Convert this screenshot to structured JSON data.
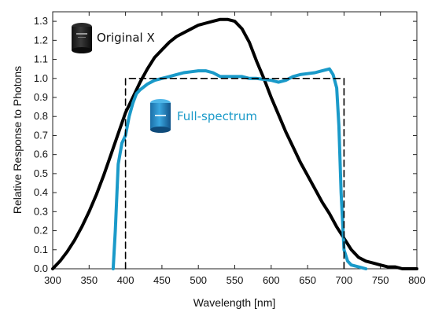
{
  "chart_data": {
    "type": "line",
    "title": "",
    "xlabel": "Wavelength [nm]",
    "ylabel": "Relative Response to Photons",
    "xlim": [
      300,
      800
    ],
    "ylim": [
      0,
      1.35
    ],
    "xticks": [
      300,
      350,
      400,
      450,
      500,
      550,
      600,
      650,
      700,
      750,
      800
    ],
    "xtick_labels": [
      "300",
      "350",
      "400",
      "450",
      "500",
      "550",
      "600",
      "650",
      "700",
      "750",
      "800"
    ],
    "yticks": [
      0,
      0.1,
      0.2,
      0.3,
      0.4,
      0.5,
      0.6,
      0.7,
      0.8,
      0.9,
      1.0,
      1.1,
      1.2,
      1.3
    ],
    "ytick_labels": [
      "0.0",
      "0.1",
      "0.2",
      "0.3",
      "0.4",
      "0.5",
      "0.6",
      "0.7",
      "0.8",
      "0.9",
      "1.0",
      "1.1",
      "1.2",
      "1.3"
    ],
    "grid": false,
    "series": [
      {
        "name": "Original X",
        "color": "#000000",
        "style": "solid",
        "x": [
          300,
          310,
          320,
          330,
          340,
          350,
          360,
          370,
          380,
          390,
          400,
          410,
          420,
          430,
          440,
          450,
          460,
          470,
          480,
          490,
          500,
          510,
          520,
          530,
          540,
          550,
          560,
          570,
          580,
          590,
          600,
          610,
          620,
          630,
          640,
          650,
          660,
          670,
          680,
          690,
          700,
          710,
          720,
          730,
          740,
          750,
          760,
          770,
          780,
          790,
          800
        ],
        "y": [
          0.0,
          0.04,
          0.09,
          0.15,
          0.22,
          0.3,
          0.39,
          0.49,
          0.6,
          0.71,
          0.82,
          0.9,
          0.98,
          1.05,
          1.11,
          1.15,
          1.19,
          1.22,
          1.24,
          1.26,
          1.28,
          1.29,
          1.3,
          1.31,
          1.31,
          1.3,
          1.26,
          1.19,
          1.09,
          1.0,
          0.9,
          0.81,
          0.72,
          0.64,
          0.56,
          0.49,
          0.42,
          0.35,
          0.29,
          0.22,
          0.16,
          0.1,
          0.06,
          0.04,
          0.03,
          0.02,
          0.01,
          0.01,
          0.0,
          0.0,
          0.0
        ]
      },
      {
        "name": "Full-spectrum",
        "color": "#1a9ac9",
        "style": "solid",
        "x": [
          383,
          386,
          390,
          395,
          400,
          405,
          410,
          415,
          420,
          430,
          440,
          450,
          460,
          470,
          480,
          490,
          500,
          510,
          520,
          530,
          540,
          550,
          560,
          570,
          580,
          590,
          600,
          610,
          620,
          630,
          640,
          650,
          660,
          670,
          680,
          685,
          690,
          693,
          696,
          700,
          705,
          710,
          720,
          730
        ],
        "y": [
          0.0,
          0.2,
          0.55,
          0.66,
          0.7,
          0.8,
          0.87,
          0.92,
          0.94,
          0.97,
          0.99,
          1.0,
          1.01,
          1.02,
          1.03,
          1.035,
          1.04,
          1.04,
          1.03,
          1.01,
          1.01,
          1.01,
          1.01,
          1.0,
          1.0,
          0.995,
          0.99,
          0.98,
          0.99,
          1.01,
          1.02,
          1.025,
          1.03,
          1.04,
          1.05,
          1.02,
          0.95,
          0.75,
          0.4,
          0.1,
          0.04,
          0.02,
          0.01,
          0.0
        ]
      },
      {
        "name": "ideal",
        "color": "#000000",
        "style": "dashed",
        "x": [
          400,
          400,
          700,
          700
        ],
        "y": [
          0.0,
          1.0,
          1.0,
          0.0
        ]
      }
    ],
    "annotations": [
      {
        "text": "Original X",
        "color": "#111111"
      },
      {
        "text": "Full-spectrum",
        "color": "#1a9ac9"
      }
    ]
  }
}
